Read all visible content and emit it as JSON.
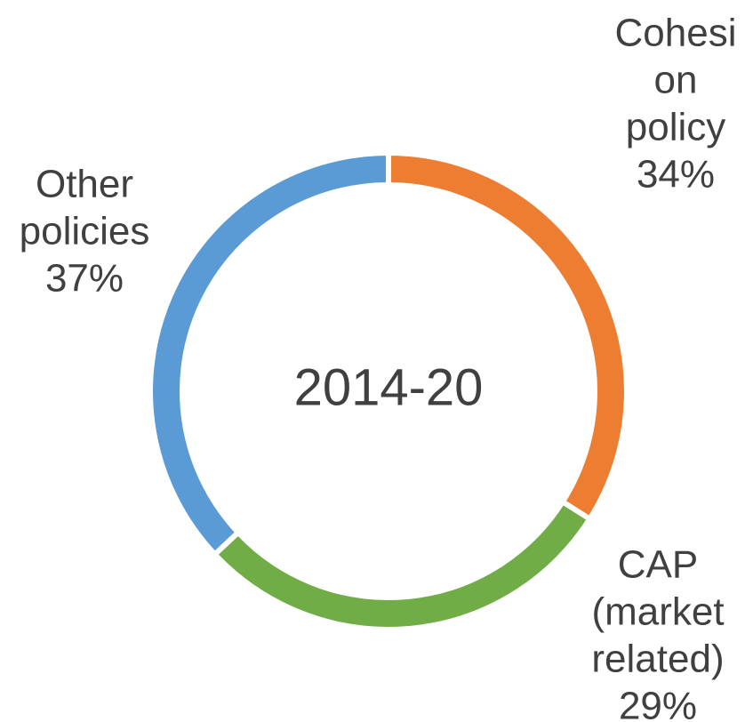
{
  "chart_data": {
    "type": "donut",
    "center_label": "2014-20",
    "categories": [
      [
        "Cohesi",
        "on",
        "policy"
      ],
      [
        "CAP",
        "(market",
        "related)"
      ],
      [
        "Other",
        "policies"
      ]
    ],
    "values": [
      34,
      29,
      37
    ],
    "value_labels": [
      "34%",
      "29%",
      "37%"
    ],
    "colors": [
      "#ED7D31",
      "#70AD47",
      "#5B9BD5"
    ]
  }
}
